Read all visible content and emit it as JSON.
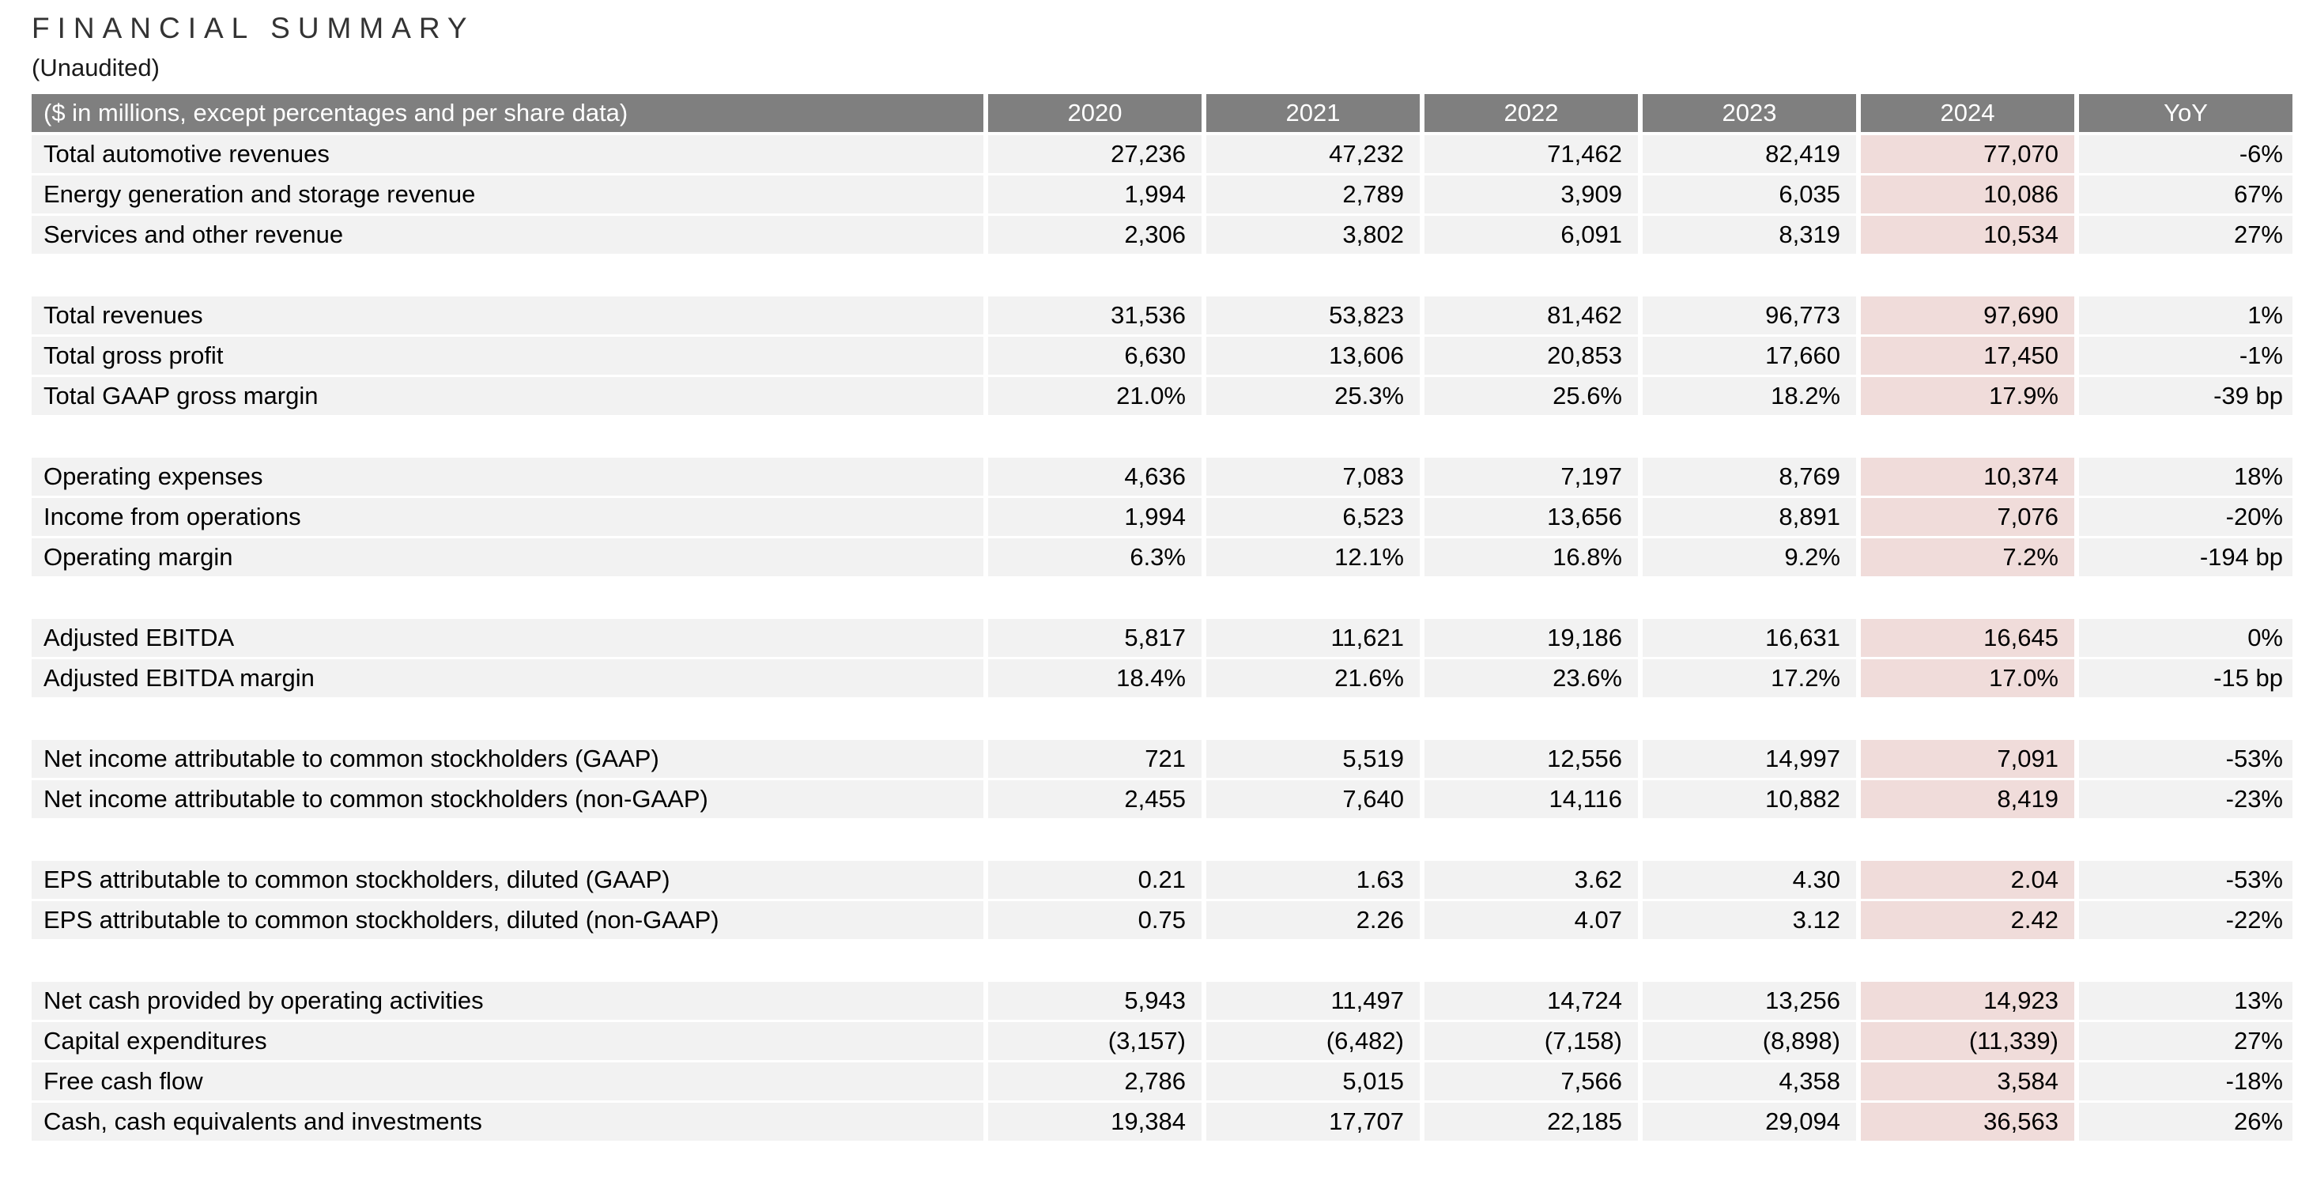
{
  "title": "FINANCIAL SUMMARY",
  "subtitle": "(Unaudited)",
  "colors": {
    "header_bg": "#7f7f7f",
    "header_text": "#ffffff",
    "row_bg": "#f2f2f2",
    "highlight_2024_bg": "#f0dcda",
    "text": "#000000"
  },
  "table": {
    "header": {
      "label": "($ in millions, except percentages and per share data)",
      "columns": [
        "2020",
        "2021",
        "2022",
        "2023",
        "2024",
        "YoY"
      ]
    },
    "highlight_column": "2024",
    "groups": [
      {
        "rows": [
          {
            "label": "Total automotive revenues",
            "values": [
              "27,236",
              "47,232",
              "71,462",
              "82,419",
              "77,070"
            ],
            "yoy": "-6%"
          },
          {
            "label": "Energy generation and storage revenue",
            "values": [
              "1,994",
              "2,789",
              "3,909",
              "6,035",
              "10,086"
            ],
            "yoy": "67%"
          },
          {
            "label": "Services and other revenue",
            "values": [
              "2,306",
              "3,802",
              "6,091",
              "8,319",
              "10,534"
            ],
            "yoy": "27%"
          }
        ]
      },
      {
        "rows": [
          {
            "label": "Total revenues",
            "values": [
              "31,536",
              "53,823",
              "81,462",
              "96,773",
              "97,690"
            ],
            "yoy": "1%"
          },
          {
            "label": "Total gross profit",
            "values": [
              "6,630",
              "13,606",
              "20,853",
              "17,660",
              "17,450"
            ],
            "yoy": "-1%"
          },
          {
            "label": "Total GAAP gross margin",
            "values": [
              "21.0%",
              "25.3%",
              "25.6%",
              "18.2%",
              "17.9%"
            ],
            "yoy": "-39 bp"
          }
        ]
      },
      {
        "rows": [
          {
            "label": "Operating expenses",
            "values": [
              "4,636",
              "7,083",
              "7,197",
              "8,769",
              "10,374"
            ],
            "yoy": "18%"
          },
          {
            "label": "Income from operations",
            "values": [
              "1,994",
              "6,523",
              "13,656",
              "8,891",
              "7,076"
            ],
            "yoy": "-20%"
          },
          {
            "label": "Operating margin",
            "values": [
              "6.3%",
              "12.1%",
              "16.8%",
              "9.2%",
              "7.2%"
            ],
            "yoy": "-194 bp"
          }
        ]
      },
      {
        "rows": [
          {
            "label": "Adjusted EBITDA",
            "values": [
              "5,817",
              "11,621",
              "19,186",
              "16,631",
              "16,645"
            ],
            "yoy": "0%"
          },
          {
            "label": "Adjusted EBITDA margin",
            "values": [
              "18.4%",
              "21.6%",
              "23.6%",
              "17.2%",
              "17.0%"
            ],
            "yoy": "-15 bp"
          }
        ]
      },
      {
        "rows": [
          {
            "label": "Net income attributable to common stockholders (GAAP)",
            "values": [
              "721",
              "5,519",
              "12,556",
              "14,997",
              "7,091"
            ],
            "yoy": "-53%"
          },
          {
            "label": "Net income attributable to common stockholders (non-GAAP)",
            "values": [
              "2,455",
              "7,640",
              "14,116",
              "10,882",
              "8,419"
            ],
            "yoy": "-23%"
          }
        ]
      },
      {
        "rows": [
          {
            "label": "EPS attributable to common stockholders, diluted (GAAP)",
            "values": [
              "0.21",
              "1.63",
              "3.62",
              "4.30",
              "2.04"
            ],
            "yoy": "-53%"
          },
          {
            "label": "EPS attributable to common stockholders, diluted (non-GAAP)",
            "values": [
              "0.75",
              "2.26",
              "4.07",
              "3.12",
              "2.42"
            ],
            "yoy": "-22%"
          }
        ]
      },
      {
        "rows": [
          {
            "label": "Net cash provided by operating activities",
            "values": [
              "5,943",
              "11,497",
              "14,724",
              "13,256",
              "14,923"
            ],
            "yoy": "13%"
          },
          {
            "label": "Capital expenditures",
            "values": [
              "(3,157)",
              "(6,482)",
              "(7,158)",
              "(8,898)",
              "(11,339)"
            ],
            "yoy": "27%"
          },
          {
            "label": "Free cash flow",
            "values": [
              "2,786",
              "5,015",
              "7,566",
              "4,358",
              "3,584"
            ],
            "yoy": "-18%"
          },
          {
            "label": "Cash, cash equivalents and investments",
            "values": [
              "19,384",
              "17,707",
              "22,185",
              "29,094",
              "36,563"
            ],
            "yoy": "26%"
          }
        ]
      }
    ]
  }
}
